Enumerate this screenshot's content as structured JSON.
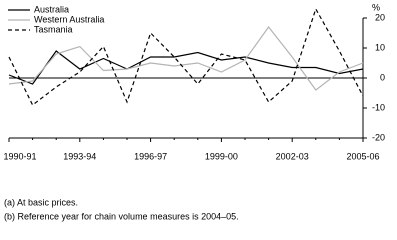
{
  "chart_data": {
    "type": "line",
    "y_label": "%",
    "categories": [
      "1990-91",
      null,
      null,
      "1993-94",
      null,
      null,
      "1996-97",
      null,
      null,
      "1999-00",
      null,
      null,
      "2002-03",
      null,
      null,
      "2005-06"
    ],
    "series": [
      {
        "name": "Australia",
        "color": "#000000",
        "dash": false,
        "values": [
          1,
          -2,
          9,
          3,
          6.5,
          3,
          7,
          7,
          8.5,
          6,
          7,
          5,
          3.5,
          3.5,
          1.5,
          3
        ]
      },
      {
        "name": "Western Australia",
        "color": "#b4b4b4",
        "dash": false,
        "values": [
          -2,
          -1,
          8,
          10.5,
          2.5,
          3,
          5,
          4,
          5,
          2,
          6,
          17,
          7,
          -4,
          2,
          5
        ]
      },
      {
        "name": "Tasmania",
        "color": "#000000",
        "dash": true,
        "values": [
          7,
          -9,
          -3,
          2,
          10.5,
          -8,
          15,
          7,
          -2,
          8,
          6,
          -8,
          -1,
          23,
          9,
          -6
        ]
      }
    ],
    "ylim": [
      -20,
      20
    ],
    "yticks": [
      -20,
      -10,
      0,
      10,
      20
    ],
    "notes": [
      "(a) At basic prices.",
      "(b) Reference year for chain volume measures is 2004–05."
    ]
  }
}
